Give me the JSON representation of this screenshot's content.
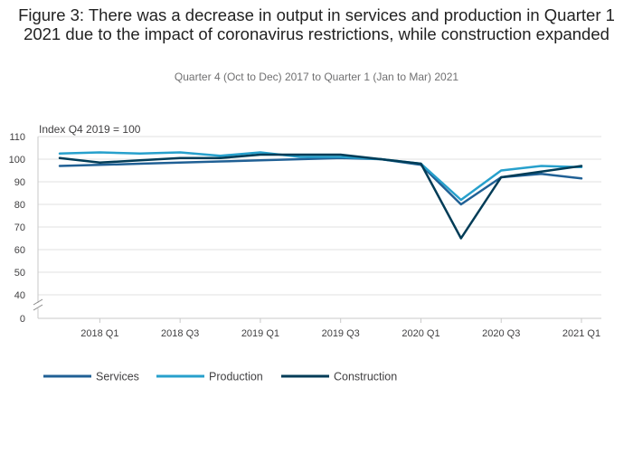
{
  "chart_data": {
    "type": "line",
    "title": "Figure 3: There was a decrease in output in services and production in Quarter 1 2021 due to the impact of coronavirus restrictions, while construction expanded",
    "subtitle": "Quarter 4 (Oct to Dec) 2017 to Quarter 1 (Jan to Mar) 2021",
    "ylabel": "Index Q4 2019 = 100",
    "ylim": [
      0,
      110
    ],
    "y_axis_break": [
      0,
      40
    ],
    "y_ticks": [
      "110",
      "100",
      "90",
      "80",
      "70",
      "60",
      "50",
      "40",
      "0"
    ],
    "categories": [
      "2017 Q4",
      "2018 Q1",
      "2018 Q2",
      "2018 Q3",
      "2018 Q4",
      "2019 Q1",
      "2019 Q2",
      "2019 Q3",
      "2019 Q4",
      "2020 Q1",
      "2020 Q2",
      "2020 Q3",
      "2020 Q4",
      "2021 Q1"
    ],
    "x_tick_labels": [
      "2018 Q1",
      "2018 Q3",
      "2019 Q1",
      "2019 Q3",
      "2020 Q1",
      "2020 Q3",
      "2021 Q1"
    ],
    "grid": true,
    "legend_position": "bottom-left",
    "series": [
      {
        "name": "Services",
        "color": "#206095",
        "values": [
          97.0,
          97.5,
          98.0,
          98.5,
          99.0,
          99.5,
          100.0,
          100.5,
          100.0,
          97.5,
          80.0,
          92.0,
          93.5,
          91.5
        ]
      },
      {
        "name": "Production",
        "color": "#27a0cc",
        "values": [
          102.5,
          103.0,
          102.5,
          103.0,
          101.5,
          103.0,
          101.0,
          101.0,
          100.0,
          98.0,
          82.0,
          95.0,
          97.0,
          96.5
        ]
      },
      {
        "name": "Construction",
        "color": "#003c57",
        "values": [
          100.5,
          98.5,
          99.5,
          100.5,
          100.5,
          102.0,
          102.0,
          102.0,
          100.0,
          98.0,
          65.0,
          92.0,
          94.5,
          97.0
        ]
      }
    ]
  }
}
